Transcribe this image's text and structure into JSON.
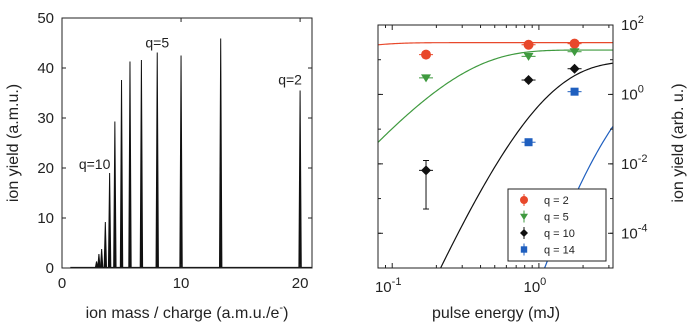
{
  "chart_data": [
    {
      "type": "line",
      "xlabel": "ion mass / charge (a.m.u./e",
      "xlabel_sup": "-",
      "xlabel_close": ")",
      "ylabel": "ion yield (a.m.u.)",
      "xlim": [
        0,
        21
      ],
      "ylim": [
        0,
        50
      ],
      "xticks": [
        "0",
        "10",
        "20"
      ],
      "xtick_values": [
        0,
        10,
        20
      ],
      "yticks": [
        "0",
        "10",
        "20",
        "30",
        "40",
        "50"
      ],
      "ytick_values": [
        0,
        10,
        20,
        30,
        40,
        50
      ],
      "peaks": [
        {
          "x": 2.9,
          "y": 1.3
        },
        {
          "x": 3.1,
          "y": 2.8
        },
        {
          "x": 3.33,
          "y": 3.8
        },
        {
          "x": 3.64,
          "y": 9.2
        },
        {
          "x": 4.0,
          "y": 19.0
        },
        {
          "x": 4.44,
          "y": 29.3
        },
        {
          "x": 5.0,
          "y": 37.6
        },
        {
          "x": 5.71,
          "y": 41.3
        },
        {
          "x": 6.67,
          "y": 41.6
        },
        {
          "x": 8.0,
          "y": 43.1
        },
        {
          "x": 10.0,
          "y": 42.5
        },
        {
          "x": 13.33,
          "y": 45.9
        },
        {
          "x": 20.0,
          "y": 35.5
        }
      ],
      "annotations": [
        {
          "text": "q=10",
          "x": 4.0
        },
        {
          "text": "q=5",
          "x": 8.0
        },
        {
          "text": "q=2",
          "x": 20.0
        }
      ]
    },
    {
      "type": "scatter",
      "xlabel": "pulse energy (mJ)",
      "ylabel": "ion yield (arb. u.)",
      "xscale": "log",
      "yscale": "log",
      "xlim": [
        0.08,
        3.2
      ],
      "ylim": [
        1e-05,
        100
      ],
      "xticks": [
        {
          "base": "10",
          "exp": "-1",
          "value": 0.1
        },
        {
          "base": "10",
          "exp": "0",
          "value": 1
        }
      ],
      "yticks": [
        {
          "base": "10",
          "exp": "2",
          "value": 100
        },
        {
          "base": "10",
          "exp": "0",
          "value": 1
        },
        {
          "base": "10",
          "exp": "-2",
          "value": 0.01
        },
        {
          "base": "10",
          "exp": "-4",
          "value": 0.0001
        }
      ],
      "legend_position": "lower-right",
      "series": [
        {
          "name": "q = 2",
          "color": "#e8482b",
          "marker": "circle",
          "x": [
            0.17,
            0.85,
            1.75
          ],
          "y": [
            14,
            27,
            29
          ],
          "fit": {
            "amp": 31,
            "order": 2,
            "sat": 0.03
          }
        },
        {
          "name": "q = 5",
          "color": "#3f9a3f",
          "marker": "triangle-down",
          "x": [
            0.17,
            0.85,
            1.75
          ],
          "y": [
            3.0,
            12.5,
            17
          ],
          "fit": {
            "amp": 19,
            "order": 5,
            "sat": 0.23
          }
        },
        {
          "name": "q = 10",
          "color": "#111111",
          "marker": "diamond",
          "x": [
            0.17,
            0.85,
            1.75
          ],
          "y": [
            0.0065,
            2.6,
            5.5
          ],
          "yerr": [
            0.006,
            0.3,
            0.5
          ],
          "fit": {
            "amp": 9,
            "order": 10,
            "sat": 0.73
          }
        },
        {
          "name": "q = 14",
          "color": "#1f5fbf",
          "marker": "square",
          "x": [
            0.85,
            1.75
          ],
          "y": [
            0.042,
            1.2
          ],
          "fit": {
            "amp": 5,
            "order": 14,
            "sat": 2.2
          }
        }
      ]
    }
  ]
}
